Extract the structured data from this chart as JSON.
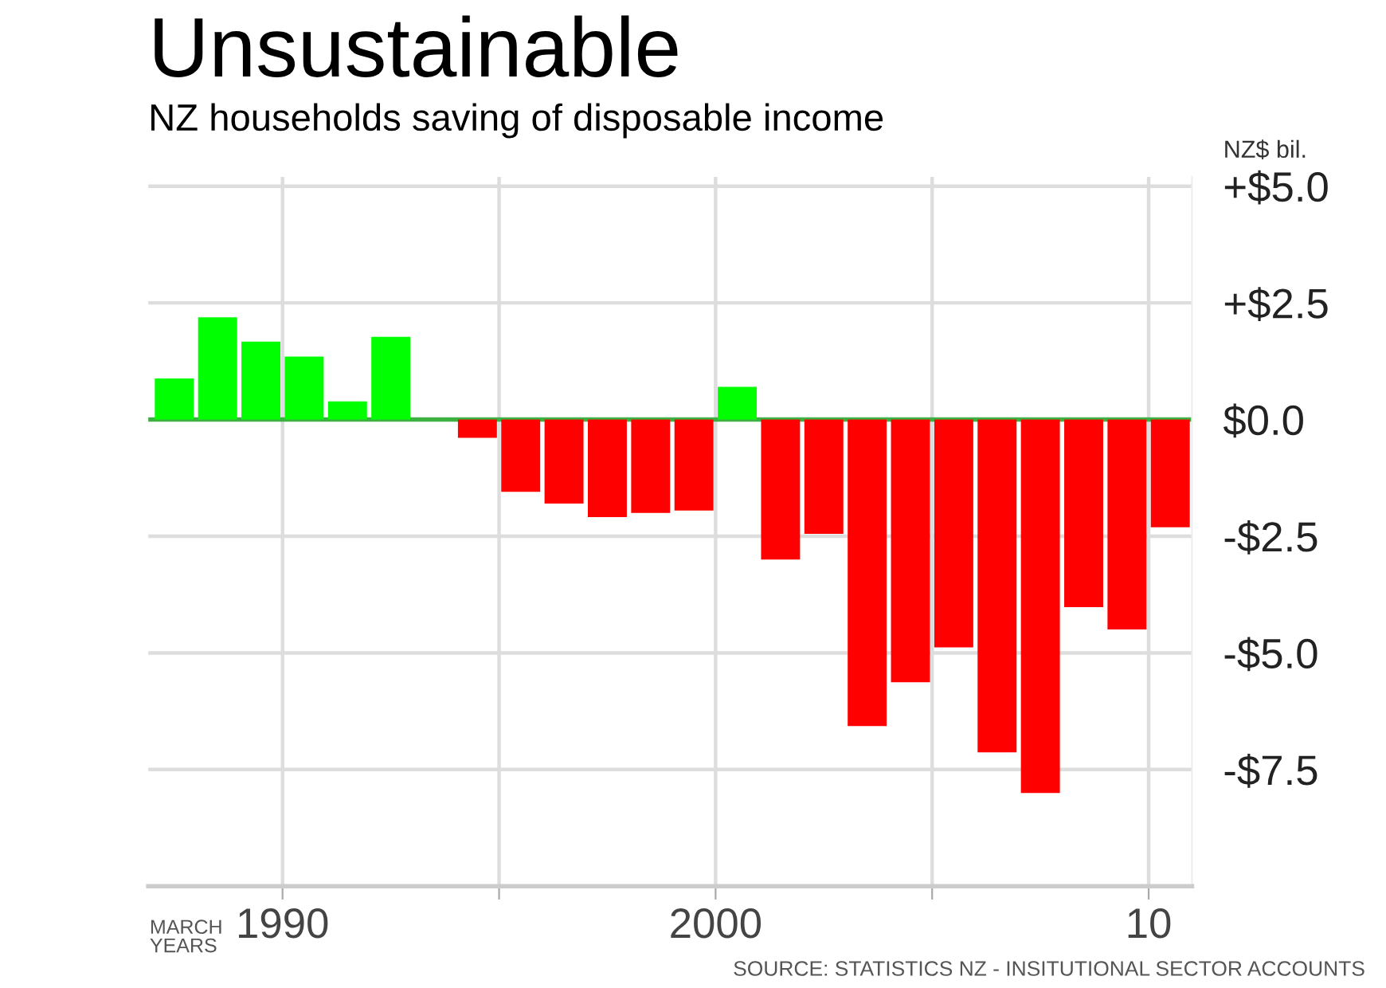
{
  "chart_data": {
    "type": "bar",
    "title": "Unsustainable",
    "subtitle": "NZ households saving of disposable income",
    "ylabel": "NZ$ bil.",
    "x": [
      1987.5,
      1988.5,
      1989.5,
      1990.5,
      1991.5,
      1992.5,
      1993.5,
      1994.5,
      1995.5,
      1996.5,
      1997.5,
      1998.5,
      1999.5,
      2000.5,
      2001.5,
      2002.5,
      2003.5,
      2004.5,
      2005.5,
      2006.5,
      2007.5,
      2008.5,
      2009.5,
      2010.5
    ],
    "ref_lines": [
      {
        "axis": "y",
        "value": 0,
        "color": "#3cb043"
      }
    ],
    "values": [
      0.88,
      2.19,
      1.67,
      1.35,
      0.39,
      1.77,
      0,
      -0.39,
      -1.55,
      -1.8,
      -2.09,
      -2.0,
      -1.95,
      0.7,
      -3.0,
      -2.45,
      -6.57,
      -5.63,
      -4.88,
      -7.13,
      -8.0,
      -4.02,
      -4.5,
      -2.31
    ],
    "colors": [
      "#00ff00",
      "#00ff00",
      "#00ff00",
      "#00ff00",
      "#00ff00",
      "#00ff00",
      "#00ff00",
      "#ff0000",
      "#ff0000",
      "#ff0000",
      "#ff0000",
      "#ff0000",
      "#ff0000",
      "#00ff00",
      "#ff0000",
      "#ff0000",
      "#ff0000",
      "#ff0000",
      "#ff0000",
      "#ff0000",
      "#ff0000",
      "#ff0000",
      "#ff0000",
      "#ff0000"
    ],
    "xlim": [
      1986.9,
      2011
    ],
    "xticks": [
      1990,
      {
        "value": 1995,
        "label": null
      },
      2000,
      {
        "value": 2005,
        "label": null
      },
      {
        "value": 2010,
        "label": "10"
      }
    ],
    "ylim": [
      -10,
      5.2
    ],
    "yticks": [
      {
        "value": 5,
        "label": "+$5.0"
      },
      {
        "value": 2.5,
        "label": "+$2.5"
      },
      {
        "value": 0,
        "label": "$0.0"
      },
      {
        "value": -2.5,
        "label": "-$2.5"
      },
      {
        "value": -5,
        "label": "-$5.0"
      },
      {
        "value": -7.5,
        "label": "-$7.5"
      }
    ],
    "grid": true,
    "annotations": [
      "MARCH\nYEARS",
      "SOURCE: STATISTICS NZ - INSITUTIONAL SECTOR ACCOUNTS"
    ]
  }
}
